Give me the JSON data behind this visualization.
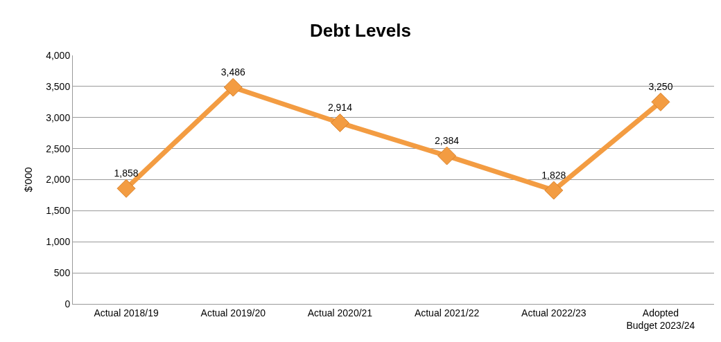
{
  "chart_data": {
    "type": "line",
    "title": "Debt Levels",
    "ylabel": "$'000",
    "categories": [
      "Actual 2018/19",
      "Actual 2019/20",
      "Actual 2020/21",
      "Actual 2021/22",
      "Actual 2022/23",
      "Adopted Budget 2023/24"
    ],
    "series": [
      {
        "color": "#f39c42",
        "values": [
          1858,
          3486,
          2914,
          2384,
          1828,
          3250
        ],
        "value_labels": [
          "1,858",
          "3,486",
          "2,914",
          "2,384",
          "1,828",
          "3,250"
        ]
      }
    ],
    "ylim": [
      0,
      4000
    ],
    "yticks": [
      {
        "value": 0,
        "label": "0"
      },
      {
        "value": 500,
        "label": "500"
      },
      {
        "value": 1000,
        "label": "1,000"
      },
      {
        "value": 1500,
        "label": "1,500"
      },
      {
        "value": 2000,
        "label": "2,000"
      },
      {
        "value": 2500,
        "label": "2,500"
      },
      {
        "value": 3000,
        "label": "3,000"
      },
      {
        "value": 3500,
        "label": "3,500"
      },
      {
        "value": 4000,
        "label": "4,000"
      }
    ],
    "grid": "y",
    "marker": "diamond",
    "line_style": "solid",
    "legend": false
  }
}
